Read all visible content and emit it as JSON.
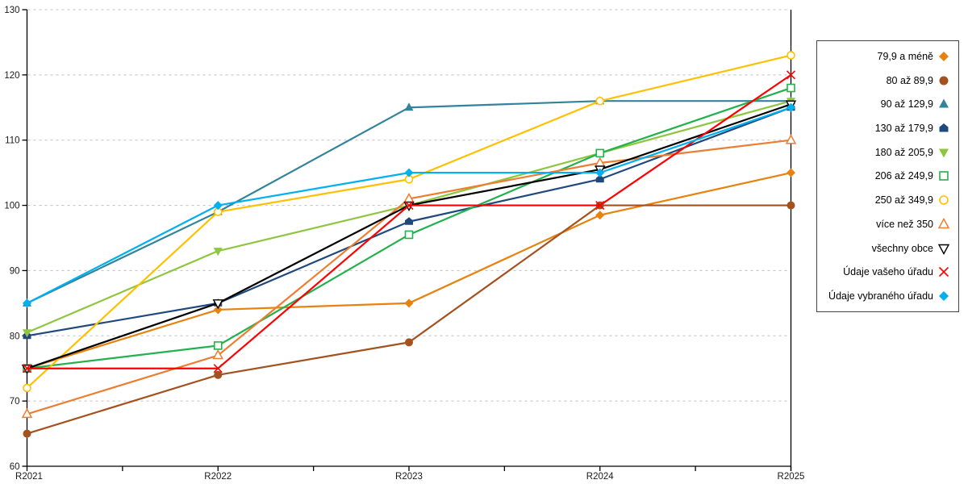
{
  "chart_data": {
    "type": "line",
    "title": "",
    "xlabel": "",
    "ylabel": "",
    "x_categories": [
      "R2021",
      "R2022",
      "R2023",
      "R2024",
      "R2025"
    ],
    "ylim": [
      60,
      130
    ],
    "y_tick_labels": [
      "60",
      "70",
      "80",
      "90",
      "100",
      "110",
      "120",
      "130"
    ],
    "grid": "horizontal-dashed",
    "legend_position": "right",
    "series": [
      {
        "name": "79,9 a méně",
        "color": "#E8820E",
        "marker": "diamond",
        "values": [
          75,
          84,
          85,
          98.5,
          105
        ]
      },
      {
        "name": "80 až 89,9",
        "color": "#A3511E",
        "marker": "circle",
        "values": [
          65,
          74,
          79,
          100,
          100
        ]
      },
      {
        "name": "90 až 129,9",
        "color": "#31849B",
        "marker": "triangle-up",
        "values": [
          85,
          99,
          115,
          116,
          116
        ]
      },
      {
        "name": "130 až 179,9",
        "color": "#1F497D",
        "marker": "pentagon",
        "values": [
          80,
          85,
          97.5,
          104,
          115
        ]
      },
      {
        "name": "180 až 205,9",
        "color": "#8EC63F",
        "marker": "triangle-down",
        "values": [
          80.5,
          93,
          100,
          108,
          116
        ]
      },
      {
        "name": "206 až 249,9",
        "color": "#22B14C",
        "marker": "square-open",
        "values": [
          75,
          78.5,
          95.5,
          108,
          118
        ]
      },
      {
        "name": "250 až 349,9",
        "color": "#FFC000",
        "marker": "circle-open",
        "values": [
          72,
          99,
          104,
          116,
          123
        ]
      },
      {
        "name": "více než 350",
        "color": "#ED7D31",
        "marker": "triangle-up-open",
        "values": [
          68,
          77,
          101,
          106.5,
          110
        ]
      },
      {
        "name": "všechny obce",
        "color": "#000000",
        "marker": "triangle-down-open",
        "values": [
          75,
          85,
          100,
          105.5,
          115.5
        ]
      },
      {
        "name": "Údaje vašeho úřadu",
        "color": "#FF0000",
        "marker": "x",
        "values": [
          75,
          75,
          100,
          100,
          120
        ]
      },
      {
        "name": "Údaje vybraného úřadu",
        "color": "#00B0F0",
        "marker": "diamond",
        "values": [
          85,
          100,
          105,
          105,
          115
        ]
      }
    ]
  },
  "colors": {
    "axis": "#000000",
    "gridline": "#bfbfbf",
    "tick_text": "#1a1a1a",
    "legend_border": "#444444",
    "background": "#ffffff"
  }
}
